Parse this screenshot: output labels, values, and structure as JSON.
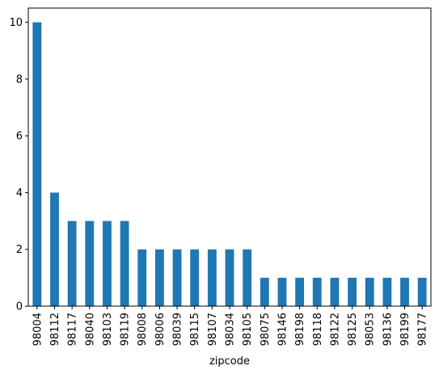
{
  "chart_data": {
    "type": "bar",
    "title": "",
    "xlabel": "zipcode",
    "ylabel": "",
    "categories": [
      "98004",
      "98112",
      "98117",
      "98040",
      "98103",
      "98119",
      "98008",
      "98006",
      "98039",
      "98115",
      "98107",
      "98034",
      "98105",
      "98075",
      "98146",
      "98198",
      "98118",
      "98122",
      "98125",
      "98053",
      "98136",
      "98199",
      "98177"
    ],
    "values": [
      10,
      4,
      3,
      3,
      3,
      3,
      2,
      2,
      2,
      2,
      2,
      2,
      2,
      1,
      1,
      1,
      1,
      1,
      1,
      1,
      1,
      1,
      1
    ],
    "ylim": [
      0,
      10.5
    ],
    "yticks": [
      0,
      2,
      4,
      6,
      8,
      10
    ],
    "grid": false,
    "legend": "none",
    "bar_color": "#1f77b4",
    "axis_color": "#000000"
  }
}
